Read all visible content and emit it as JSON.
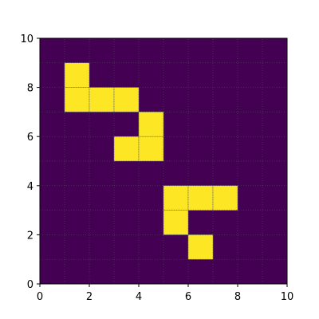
{
  "chart_data": {
    "type": "heatmap",
    "title": "",
    "xlabel": "",
    "ylabel": "",
    "xlim": [
      0,
      10
    ],
    "ylim": [
      0,
      10
    ],
    "x_ticks": [
      0,
      2,
      4,
      6,
      8,
      10
    ],
    "y_ticks": [
      0,
      2,
      4,
      6,
      8,
      10
    ],
    "grid": true,
    "colors": {
      "off": "#440154",
      "on": "#fde725"
    },
    "filled_cells": [
      {
        "x": 1,
        "y": 8
      },
      {
        "x": 1,
        "y": 7
      },
      {
        "x": 2,
        "y": 7
      },
      {
        "x": 3,
        "y": 7
      },
      {
        "x": 4,
        "y": 6
      },
      {
        "x": 3,
        "y": 5
      },
      {
        "x": 4,
        "y": 5
      },
      {
        "x": 5,
        "y": 3
      },
      {
        "x": 6,
        "y": 3
      },
      {
        "x": 7,
        "y": 3
      },
      {
        "x": 5,
        "y": 2
      },
      {
        "x": 6,
        "y": 1
      }
    ]
  }
}
